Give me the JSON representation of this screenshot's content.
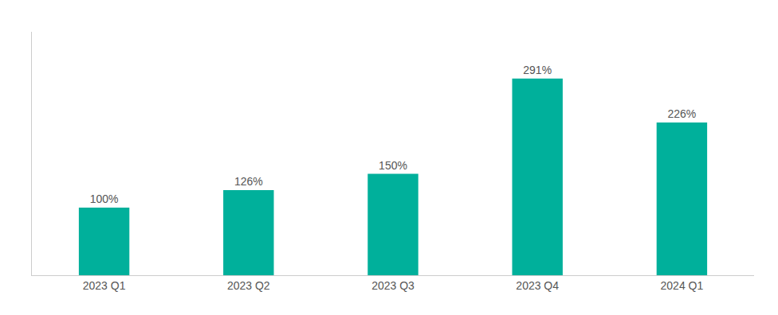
{
  "chart_data": {
    "type": "bar",
    "categories": [
      "2023 Q1",
      "2023 Q2",
      "2023 Q3",
      "2023 Q4",
      "2024 Q1"
    ],
    "values": [
      100,
      126,
      150,
      291,
      226
    ],
    "value_labels": [
      "100%",
      "126%",
      "150%",
      "291%",
      "226%"
    ],
    "color": "#00b09b",
    "ylim": [
      0,
      360
    ],
    "grid": false,
    "tick_labels": "x"
  }
}
